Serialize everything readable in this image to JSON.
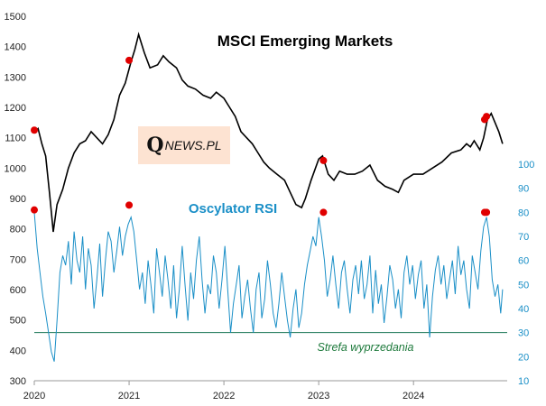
{
  "chart_data": {
    "type": "line",
    "title": "MSCI Emerging Markets",
    "x_range": [
      2020.0,
      2024.95
    ],
    "x_ticks": [
      "2020",
      "2021",
      "2022",
      "2023",
      "2024"
    ],
    "y_left": {
      "range": [
        300,
        1500
      ],
      "ticks": [
        "300",
        "400",
        "500",
        "600",
        "700",
        "800",
        "900",
        "1000",
        "1100",
        "1200",
        "1300",
        "1400",
        "1500"
      ]
    },
    "y_right": {
      "range": [
        10,
        100
      ],
      "ticks": [
        "10",
        "20",
        "30",
        "40",
        "50",
        "60",
        "70",
        "80",
        "90",
        "100"
      ]
    },
    "oversold_level": 30,
    "colors": {
      "price": "#000000",
      "rsi": "#1a8fc7",
      "oversold_line": "#1e7a5a",
      "marker": "#e00000",
      "rsi_label": "#1a8fc7",
      "zone_label": "#1e7a3c"
    },
    "price_series": {
      "name": "MSCI Emerging Markets",
      "x": [
        2020.0,
        2020.04,
        2020.08,
        2020.12,
        2020.16,
        2020.2,
        2020.24,
        2020.3,
        2020.36,
        2020.42,
        2020.48,
        2020.54,
        2020.6,
        2020.66,
        2020.72,
        2020.78,
        2020.84,
        2020.9,
        2020.96,
        2021.02,
        2021.06,
        2021.1,
        2021.16,
        2021.22,
        2021.3,
        2021.36,
        2021.42,
        2021.5,
        2021.56,
        2021.62,
        2021.7,
        2021.78,
        2021.86,
        2021.92,
        2022.0,
        2022.06,
        2022.12,
        2022.18,
        2022.24,
        2022.3,
        2022.36,
        2022.42,
        2022.48,
        2022.56,
        2022.64,
        2022.7,
        2022.76,
        2022.82,
        2022.86,
        2022.92,
        2023.0,
        2023.04,
        2023.1,
        2023.16,
        2023.22,
        2023.3,
        2023.38,
        2023.46,
        2023.54,
        2023.62,
        2023.7,
        2023.78,
        2023.84,
        2023.9,
        2024.0,
        2024.1,
        2024.2,
        2024.3,
        2024.4,
        2024.5,
        2024.56,
        2024.6,
        2024.64,
        2024.7,
        2024.74,
        2024.78,
        2024.82,
        2024.86,
        2024.9,
        2024.94
      ],
      "values": [
        1115,
        1130,
        1080,
        1040,
        920,
        790,
        880,
        930,
        1000,
        1050,
        1080,
        1090,
        1120,
        1100,
        1080,
        1110,
        1160,
        1240,
        1280,
        1350,
        1390,
        1440,
        1380,
        1330,
        1340,
        1370,
        1350,
        1330,
        1290,
        1270,
        1260,
        1240,
        1230,
        1250,
        1230,
        1200,
        1170,
        1120,
        1100,
        1080,
        1050,
        1020,
        1000,
        980,
        960,
        920,
        880,
        870,
        900,
        960,
        1030,
        1040,
        980,
        960,
        990,
        980,
        980,
        990,
        1010,
        960,
        940,
        930,
        920,
        960,
        980,
        980,
        1000,
        1020,
        1050,
        1060,
        1080,
        1070,
        1090,
        1060,
        1100,
        1160,
        1180,
        1150,
        1120,
        1080
      ]
    },
    "rsi_series": {
      "name": "Oscylator RSI",
      "x": [
        2020.0,
        2020.03,
        2020.06,
        2020.09,
        2020.12,
        2020.15,
        2020.18,
        2020.21,
        2020.24,
        2020.27,
        2020.3,
        2020.33,
        2020.36,
        2020.39,
        2020.42,
        2020.45,
        2020.48,
        2020.51,
        2020.54,
        2020.57,
        2020.6,
        2020.63,
        2020.66,
        2020.69,
        2020.72,
        2020.75,
        2020.78,
        2020.81,
        2020.84,
        2020.87,
        2020.9,
        2020.93,
        2020.96,
        2020.99,
        2021.02,
        2021.05,
        2021.08,
        2021.11,
        2021.14,
        2021.17,
        2021.2,
        2021.23,
        2021.26,
        2021.29,
        2021.32,
        2021.35,
        2021.38,
        2021.41,
        2021.44,
        2021.47,
        2021.5,
        2021.53,
        2021.56,
        2021.59,
        2021.62,
        2021.65,
        2021.68,
        2021.71,
        2021.74,
        2021.77,
        2021.8,
        2021.83,
        2021.86,
        2021.89,
        2021.92,
        2021.95,
        2021.98,
        2022.01,
        2022.04,
        2022.07,
        2022.1,
        2022.13,
        2022.16,
        2022.19,
        2022.22,
        2022.25,
        2022.28,
        2022.31,
        2022.34,
        2022.37,
        2022.4,
        2022.43,
        2022.46,
        2022.49,
        2022.52,
        2022.55,
        2022.58,
        2022.61,
        2022.64,
        2022.67,
        2022.7,
        2022.73,
        2022.76,
        2022.79,
        2022.82,
        2022.85,
        2022.88,
        2022.91,
        2022.94,
        2022.97,
        2023.0,
        2023.03,
        2023.06,
        2023.09,
        2023.12,
        2023.15,
        2023.18,
        2023.21,
        2023.24,
        2023.27,
        2023.3,
        2023.33,
        2023.36,
        2023.39,
        2023.42,
        2023.45,
        2023.48,
        2023.51,
        2023.54,
        2023.57,
        2023.6,
        2023.63,
        2023.66,
        2023.69,
        2023.72,
        2023.75,
        2023.78,
        2023.81,
        2023.84,
        2023.87,
        2023.9,
        2023.93,
        2023.96,
        2023.99,
        2024.02,
        2024.05,
        2024.08,
        2024.11,
        2024.14,
        2024.17,
        2024.2,
        2024.23,
        2024.26,
        2024.29,
        2024.32,
        2024.35,
        2024.38,
        2024.41,
        2024.44,
        2024.47,
        2024.5,
        2024.53,
        2024.56,
        2024.59,
        2024.62,
        2024.65,
        2024.68,
        2024.71,
        2024.74,
        2024.77,
        2024.8,
        2024.83,
        2024.86,
        2024.89,
        2024.92,
        2024.94
      ],
      "values": [
        80,
        65,
        55,
        45,
        38,
        30,
        22,
        18,
        35,
        55,
        62,
        58,
        68,
        50,
        72,
        60,
        55,
        70,
        48,
        65,
        58,
        40,
        52,
        67,
        45,
        60,
        72,
        68,
        55,
        64,
        74,
        62,
        70,
        75,
        78,
        72,
        60,
        48,
        55,
        42,
        60,
        50,
        38,
        65,
        55,
        45,
        62,
        52,
        40,
        58,
        36,
        48,
        66,
        50,
        35,
        55,
        44,
        60,
        70,
        52,
        38,
        50,
        46,
        62,
        55,
        40,
        52,
        66,
        48,
        30,
        42,
        50,
        58,
        36,
        45,
        52,
        40,
        30,
        48,
        55,
        36,
        44,
        60,
        50,
        38,
        32,
        42,
        55,
        45,
        35,
        28,
        40,
        48,
        32,
        38,
        50,
        58,
        64,
        70,
        66,
        78,
        70,
        60,
        45,
        52,
        62,
        50,
        40,
        55,
        60,
        48,
        38,
        52,
        58,
        46,
        60,
        44,
        50,
        62,
        38,
        56,
        42,
        50,
        34,
        45,
        58,
        52,
        40,
        48,
        36,
        55,
        62,
        50,
        58,
        44,
        54,
        60,
        40,
        50,
        28,
        45,
        56,
        62,
        50,
        58,
        44,
        52,
        60,
        46,
        66,
        54,
        60,
        48,
        40,
        62,
        55,
        48,
        64,
        74,
        78,
        70,
        52,
        45,
        50,
        38,
        48
      ]
    },
    "markers": [
      {
        "series": "price",
        "x": 2020.0,
        "value": 1125
      },
      {
        "series": "price",
        "x": 2021.0,
        "value": 1355
      },
      {
        "series": "price",
        "x": 2023.05,
        "value": 1025
      },
      {
        "series": "price",
        "x": 2024.75,
        "value": 1160
      },
      {
        "series": "price",
        "x": 2024.77,
        "value": 1170
      },
      {
        "series": "rsi",
        "x": 2020.0,
        "value": 81
      },
      {
        "series": "rsi",
        "x": 2021.0,
        "value": 83
      },
      {
        "series": "rsi",
        "x": 2023.05,
        "value": 80
      },
      {
        "series": "rsi",
        "x": 2024.75,
        "value": 80
      },
      {
        "series": "rsi",
        "x": 2024.77,
        "value": 80
      }
    ],
    "annotations": {
      "rsi_label": "Oscylator RSI",
      "oversold_zone": "Strefa wyprzedania"
    }
  },
  "logo": {
    "q": "Q",
    "rest": "NEWS.PL"
  }
}
